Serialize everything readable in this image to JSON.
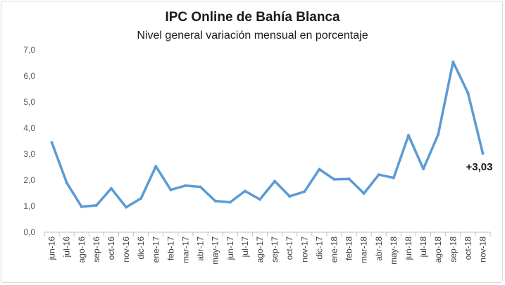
{
  "chart_data": {
    "type": "line",
    "title": "IPC Online de Bahía Blanca",
    "subtitle": "Nivel general variación mensual en porcentaje",
    "xlabel": "",
    "ylabel": "",
    "ylim": [
      0,
      7
    ],
    "yticks": [
      "0,0",
      "1,0",
      "2,0",
      "3,0",
      "4,0",
      "5,0",
      "6,0",
      "7,0"
    ],
    "grid": false,
    "categories": [
      "jun-16",
      "jul-16",
      "ago-16",
      "sep-16",
      "oct-16",
      "nov-16",
      "dic-16",
      "ene-17",
      "feb-17",
      "mar-17",
      "abr-17",
      "may-17",
      "jun-17",
      "jul-17",
      "ago-17",
      "sep-17",
      "oct-17",
      "nov-17",
      "dic-17",
      "ene-18",
      "feb-18",
      "mar-18",
      "abr-18",
      "may-18",
      "jun-18",
      "jul-18",
      "ago-18",
      "sep-18",
      "oct-18",
      "nov-18"
    ],
    "series": [
      {
        "color": "#5b9bd5",
        "values": [
          3.45,
          1.9,
          0.98,
          1.03,
          1.68,
          0.96,
          1.3,
          2.53,
          1.63,
          1.79,
          1.74,
          1.2,
          1.15,
          1.58,
          1.26,
          1.96,
          1.38,
          1.56,
          2.42,
          2.03,
          2.05,
          1.49,
          2.21,
          2.09,
          3.72,
          2.43,
          3.76,
          6.54,
          5.35,
          3.03
        ]
      }
    ],
    "annotation": "+3,03"
  }
}
